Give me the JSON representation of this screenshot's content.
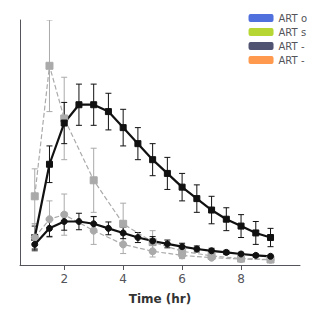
{
  "chart_data": {
    "type": "line",
    "xlabel": "Time (hr)",
    "xlim": [
      0.5,
      10
    ],
    "ylim": [
      -0.02,
      1.05
    ],
    "xticks": [
      2,
      4,
      6,
      8
    ],
    "tick_labels": "x",
    "grid": false,
    "legend": "upper right",
    "series": [
      {
        "name": "ART o",
        "color": "#aaaaaa",
        "line_style": "dashed",
        "marker": "square",
        "x": [
          1.0,
          1.5,
          2.0,
          3.0,
          4.0,
          5.0,
          6.0,
          7.0,
          8.0,
          9.0
        ],
        "values": [
          0.28,
          0.85,
          0.62,
          0.35,
          0.16,
          0.08,
          0.04,
          0.02,
          0.008,
          0.004
        ],
        "yerr": [
          0.12,
          0.2,
          0.18,
          0.14,
          0.09,
          0.05,
          0.025,
          0.012,
          0.006,
          0.003
        ]
      },
      {
        "name": "ART s",
        "color": "#111111",
        "line_style": "solid",
        "marker": "square",
        "x": [
          1.0,
          1.5,
          2.0,
          2.5,
          3.0,
          3.5,
          4.0,
          4.5,
          5.0,
          5.5,
          6.0,
          6.5,
          7.0,
          7.5,
          8.0,
          8.5,
          9.0
        ],
        "values": [
          0.1,
          0.42,
          0.6,
          0.68,
          0.68,
          0.65,
          0.58,
          0.51,
          0.44,
          0.38,
          0.32,
          0.27,
          0.22,
          0.18,
          0.15,
          0.12,
          0.1
        ],
        "yerr": [
          0.05,
          0.08,
          0.09,
          0.09,
          0.09,
          0.08,
          0.08,
          0.07,
          0.07,
          0.07,
          0.06,
          0.06,
          0.06,
          0.05,
          0.05,
          0.05,
          0.04
        ]
      },
      {
        "name": "ART -",
        "color": "#aaaaaa",
        "line_style": "dashed",
        "marker": "circle",
        "x": [
          1.0,
          1.5,
          2.0,
          3.0,
          4.0,
          5.0,
          6.0,
          7.0,
          8.0,
          9.0
        ],
        "values": [
          0.1,
          0.18,
          0.2,
          0.13,
          0.07,
          0.04,
          0.022,
          0.012,
          0.006,
          0.003
        ],
        "yerr": [
          0.06,
          0.08,
          0.09,
          0.06,
          0.04,
          0.025,
          0.014,
          0.008,
          0.005,
          0.002
        ]
      },
      {
        "name": "ART -",
        "color": "#111111",
        "line_style": "solid",
        "marker": "circle",
        "x": [
          1.0,
          1.5,
          2.0,
          2.5,
          3.0,
          3.5,
          4.0,
          4.5,
          5.0,
          5.5,
          6.0,
          6.5,
          7.0,
          7.5,
          8.0,
          8.5,
          9.0
        ],
        "values": [
          0.07,
          0.14,
          0.17,
          0.17,
          0.16,
          0.14,
          0.12,
          0.1,
          0.085,
          0.072,
          0.06,
          0.05,
          0.042,
          0.035,
          0.028,
          0.022,
          0.018
        ],
        "yerr": [
          0.025,
          0.035,
          0.038,
          0.036,
          0.032,
          0.028,
          0.025,
          0.022,
          0.019,
          0.017,
          0.015,
          0.013,
          0.011,
          0.009,
          0.008,
          0.007,
          0.006
        ]
      }
    ]
  }
}
